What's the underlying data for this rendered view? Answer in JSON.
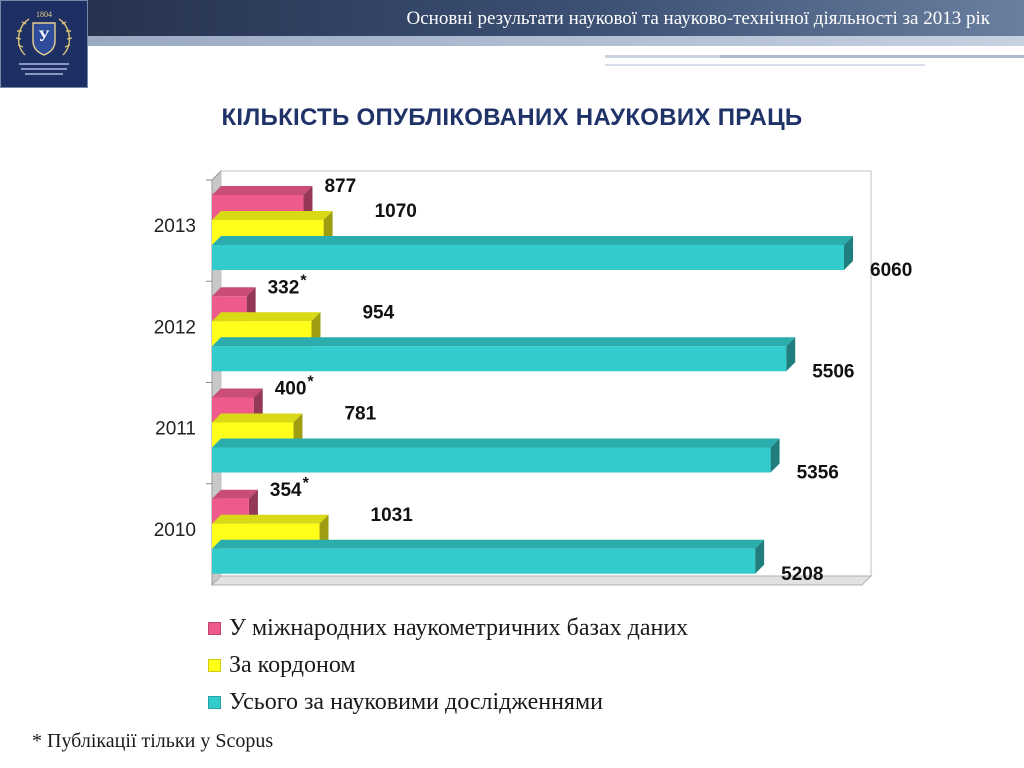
{
  "header": {
    "title": "Основні результати наукової та науково-технічної діяльності за 2013 рік",
    "logo_icon": "university-crest-icon",
    "colors": {
      "band": "#2f3f63",
      "logo_bg": "#1d2f63"
    }
  },
  "chart_title": "КІЛЬКІСТЬ ОПУБЛІКОВАНИХ НАУКОВИХ ПРАЦЬ",
  "chart_data": {
    "type": "bar",
    "orientation": "horizontal",
    "categories": [
      "2013",
      "2012",
      "2011",
      "2010"
    ],
    "series": [
      {
        "name": "У міжнародних наукометричних базах даних",
        "color": "#ee5b8a",
        "values": [
          877,
          332,
          400,
          354
        ],
        "labels": [
          "877",
          "332",
          "400",
          "354"
        ],
        "marks": [
          "",
          "*",
          "*",
          "*"
        ]
      },
      {
        "name": "За кордоном",
        "color": "#ffff1a",
        "values": [
          1070,
          954,
          781,
          1031
        ],
        "labels": [
          "1070",
          "954",
          "781",
          "1031"
        ],
        "marks": [
          "",
          "",
          "",
          ""
        ]
      },
      {
        "name": "Усього за науковими дослідженнями",
        "color": "#33cccc",
        "values": [
          6060,
          5506,
          5356,
          5208
        ],
        "labels": [
          "6060",
          "5506",
          "5356",
          "5208"
        ],
        "marks": [
          "",
          "",
          "",
          ""
        ]
      }
    ],
    "xlim": [
      0,
      6200
    ],
    "grid": false,
    "legend_position": "bottom"
  },
  "footnote": "* Публікації тільки у Scopus"
}
